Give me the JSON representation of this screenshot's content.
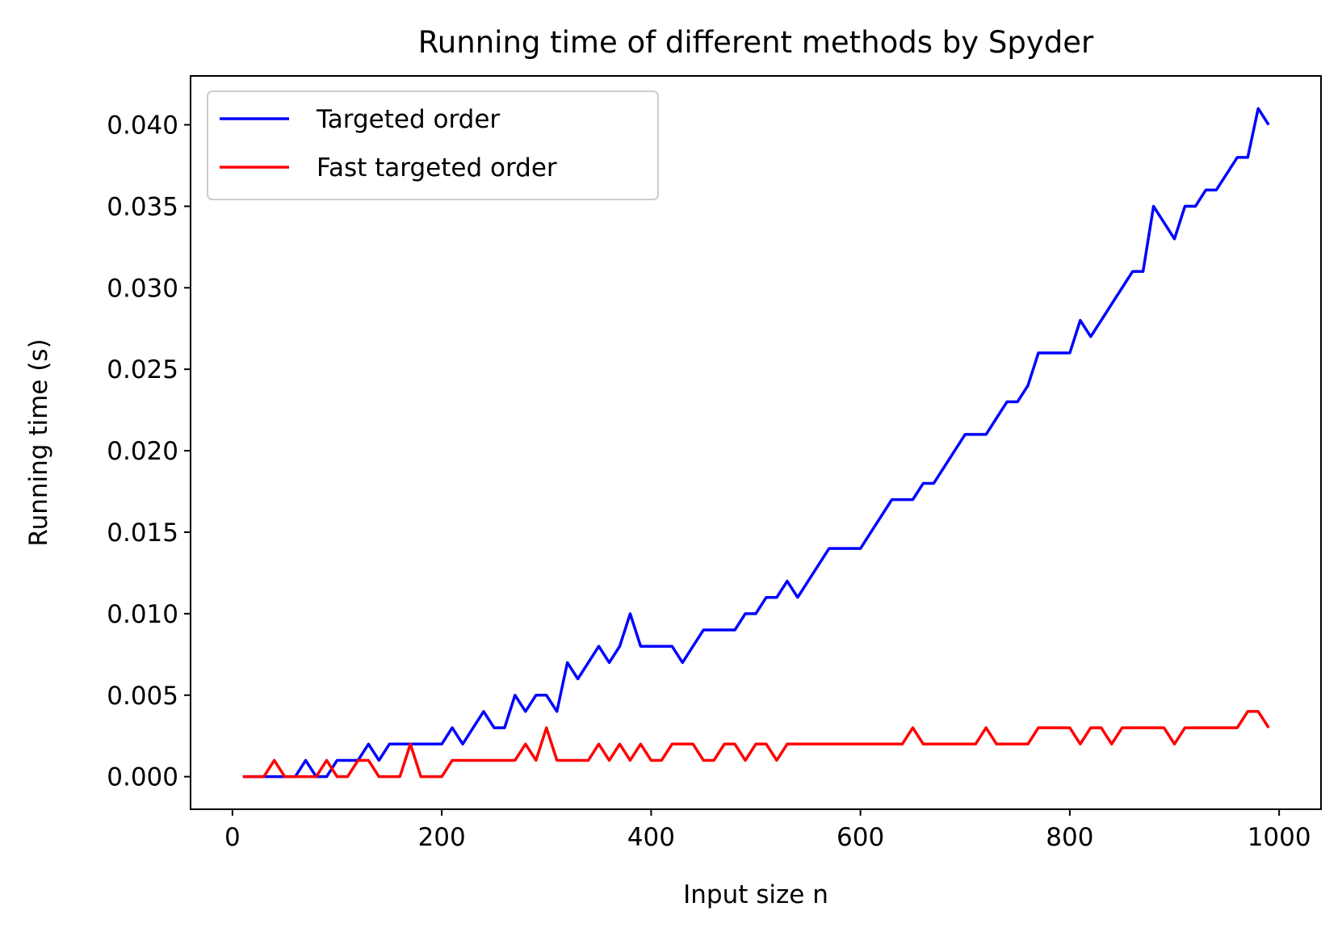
{
  "chart_data": {
    "type": "line",
    "title": "Running time of different methods by Spyder",
    "xlabel": "Input size n",
    "ylabel": "Running time (s)",
    "xlim": [
      -40,
      1040
    ],
    "ylim": [
      -0.002,
      0.043
    ],
    "xticks": [
      0,
      200,
      400,
      600,
      800,
      1000
    ],
    "xtick_labels": [
      "0",
      "200",
      "400",
      "600",
      "800",
      "1000"
    ],
    "yticks": [
      0.0,
      0.005,
      0.01,
      0.015,
      0.02,
      0.025,
      0.03,
      0.035,
      0.04
    ],
    "ytick_labels": [
      "0.000",
      "0.005",
      "0.010",
      "0.015",
      "0.020",
      "0.025",
      "0.030",
      "0.035",
      "0.040"
    ],
    "grid": false,
    "legend": "top-left",
    "x": [
      10,
      20,
      30,
      40,
      50,
      60,
      70,
      80,
      90,
      100,
      110,
      120,
      130,
      140,
      150,
      160,
      170,
      180,
      190,
      200,
      210,
      220,
      230,
      240,
      250,
      260,
      270,
      280,
      290,
      300,
      310,
      320,
      330,
      340,
      350,
      360,
      370,
      380,
      390,
      400,
      410,
      420,
      430,
      440,
      450,
      460,
      470,
      480,
      490,
      500,
      510,
      520,
      530,
      540,
      550,
      560,
      570,
      580,
      590,
      600,
      610,
      620,
      630,
      640,
      650,
      660,
      670,
      680,
      690,
      700,
      710,
      720,
      730,
      740,
      750,
      760,
      770,
      780,
      790,
      800,
      810,
      820,
      830,
      840,
      850,
      860,
      870,
      880,
      890,
      900,
      910,
      920,
      930,
      940,
      950,
      960,
      970,
      980,
      990
    ],
    "series": [
      {
        "name": "Targeted order",
        "color": "#0000ff",
        "values": [
          0,
          0,
          0,
          0,
          0,
          0,
          0.001,
          0,
          0,
          0.001,
          0.001,
          0.001,
          0.002,
          0.001,
          0.002,
          0.002,
          0.002,
          0.002,
          0.002,
          0.002,
          0.003,
          0.002,
          0.003,
          0.004,
          0.003,
          0.003,
          0.005,
          0.004,
          0.005,
          0.005,
          0.004,
          0.007,
          0.006,
          0.007,
          0.008,
          0.007,
          0.008,
          0.01,
          0.008,
          0.008,
          0.008,
          0.008,
          0.007,
          0.008,
          0.009,
          0.009,
          0.009,
          0.009,
          0.01,
          0.01,
          0.011,
          0.011,
          0.012,
          0.011,
          0.012,
          0.013,
          0.014,
          0.014,
          0.014,
          0.014,
          0.015,
          0.016,
          0.017,
          0.017,
          0.017,
          0.018,
          0.018,
          0.019,
          0.02,
          0.021,
          0.021,
          0.021,
          0.022,
          0.023,
          0.023,
          0.024,
          0.026,
          0.026,
          0.026,
          0.026,
          0.028,
          0.027,
          0.028,
          0.029,
          0.03,
          0.031,
          0.031,
          0.035,
          0.034,
          0.033,
          0.035,
          0.035,
          0.036,
          0.036,
          0.037,
          0.038,
          0.038,
          0.041,
          0.04
        ]
      },
      {
        "name": "Fast targeted order",
        "color": "#ff0000",
        "values": [
          0,
          0,
          0,
          0.001,
          0,
          0,
          0,
          0,
          0.001,
          0,
          0,
          0.001,
          0.001,
          0,
          0,
          0,
          0.002,
          0,
          0,
          0,
          0.001,
          0.001,
          0.001,
          0.001,
          0.001,
          0.001,
          0.001,
          0.002,
          0.001,
          0.003,
          0.001,
          0.001,
          0.001,
          0.001,
          0.002,
          0.001,
          0.002,
          0.001,
          0.002,
          0.001,
          0.001,
          0.002,
          0.002,
          0.002,
          0.001,
          0.001,
          0.002,
          0.002,
          0.001,
          0.002,
          0.002,
          0.001,
          0.002,
          0.002,
          0.002,
          0.002,
          0.002,
          0.002,
          0.002,
          0.002,
          0.002,
          0.002,
          0.002,
          0.002,
          0.003,
          0.002,
          0.002,
          0.002,
          0.002,
          0.002,
          0.002,
          0.003,
          0.002,
          0.002,
          0.002,
          0.002,
          0.003,
          0.003,
          0.003,
          0.003,
          0.002,
          0.003,
          0.003,
          0.002,
          0.003,
          0.003,
          0.003,
          0.003,
          0.003,
          0.002,
          0.003,
          0.003,
          0.003,
          0.003,
          0.003,
          0.003,
          0.004,
          0.004,
          0.003
        ]
      }
    ]
  }
}
